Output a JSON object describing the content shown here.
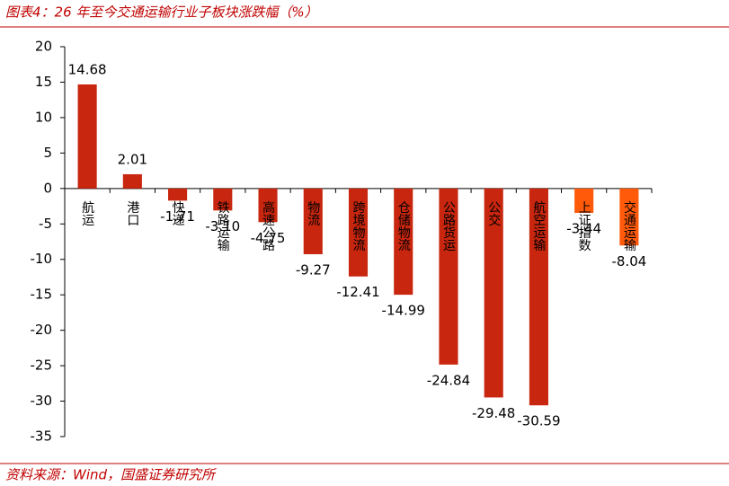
{
  "title": "图表4：26 年至今交通运输行业子板块涨跌幅（%）",
  "source": "资料来源：Wind，国盛证券研究所",
  "chart_data": {
    "type": "bar",
    "categories": [
      "航运",
      "港口",
      "快递",
      "铁路运输",
      "高速公路",
      "物流",
      "跨境物流",
      "仓储物流",
      "公路货运",
      "公交",
      "航空运输",
      "上证指数",
      "交通运输"
    ],
    "values": [
      14.68,
      2.01,
      -1.71,
      -3.1,
      -4.75,
      -9.27,
      -12.41,
      -14.99,
      -24.84,
      -29.48,
      -30.59,
      -3.44,
      -8.04
    ],
    "value_labels": [
      "14.68",
      "2.01",
      "-1.71",
      "-3.10",
      "-4.75",
      "-9.27",
      "-12.41",
      "-14.99",
      "-24.84",
      "-29.48",
      "-30.59",
      "-3.44",
      "-8.04"
    ],
    "colors": [
      "#c8260e",
      "#c8260e",
      "#c8260e",
      "#c8260e",
      "#c8260e",
      "#c8260e",
      "#c8260e",
      "#c8260e",
      "#c8260e",
      "#c8260e",
      "#c8260e",
      "#ff5a0a",
      "#ff5a0a"
    ],
    "ylim": [
      -35,
      20
    ],
    "yticks": [
      -35,
      -30,
      -25,
      -20,
      -15,
      -10,
      -5,
      0,
      5,
      10,
      15,
      20
    ]
  }
}
